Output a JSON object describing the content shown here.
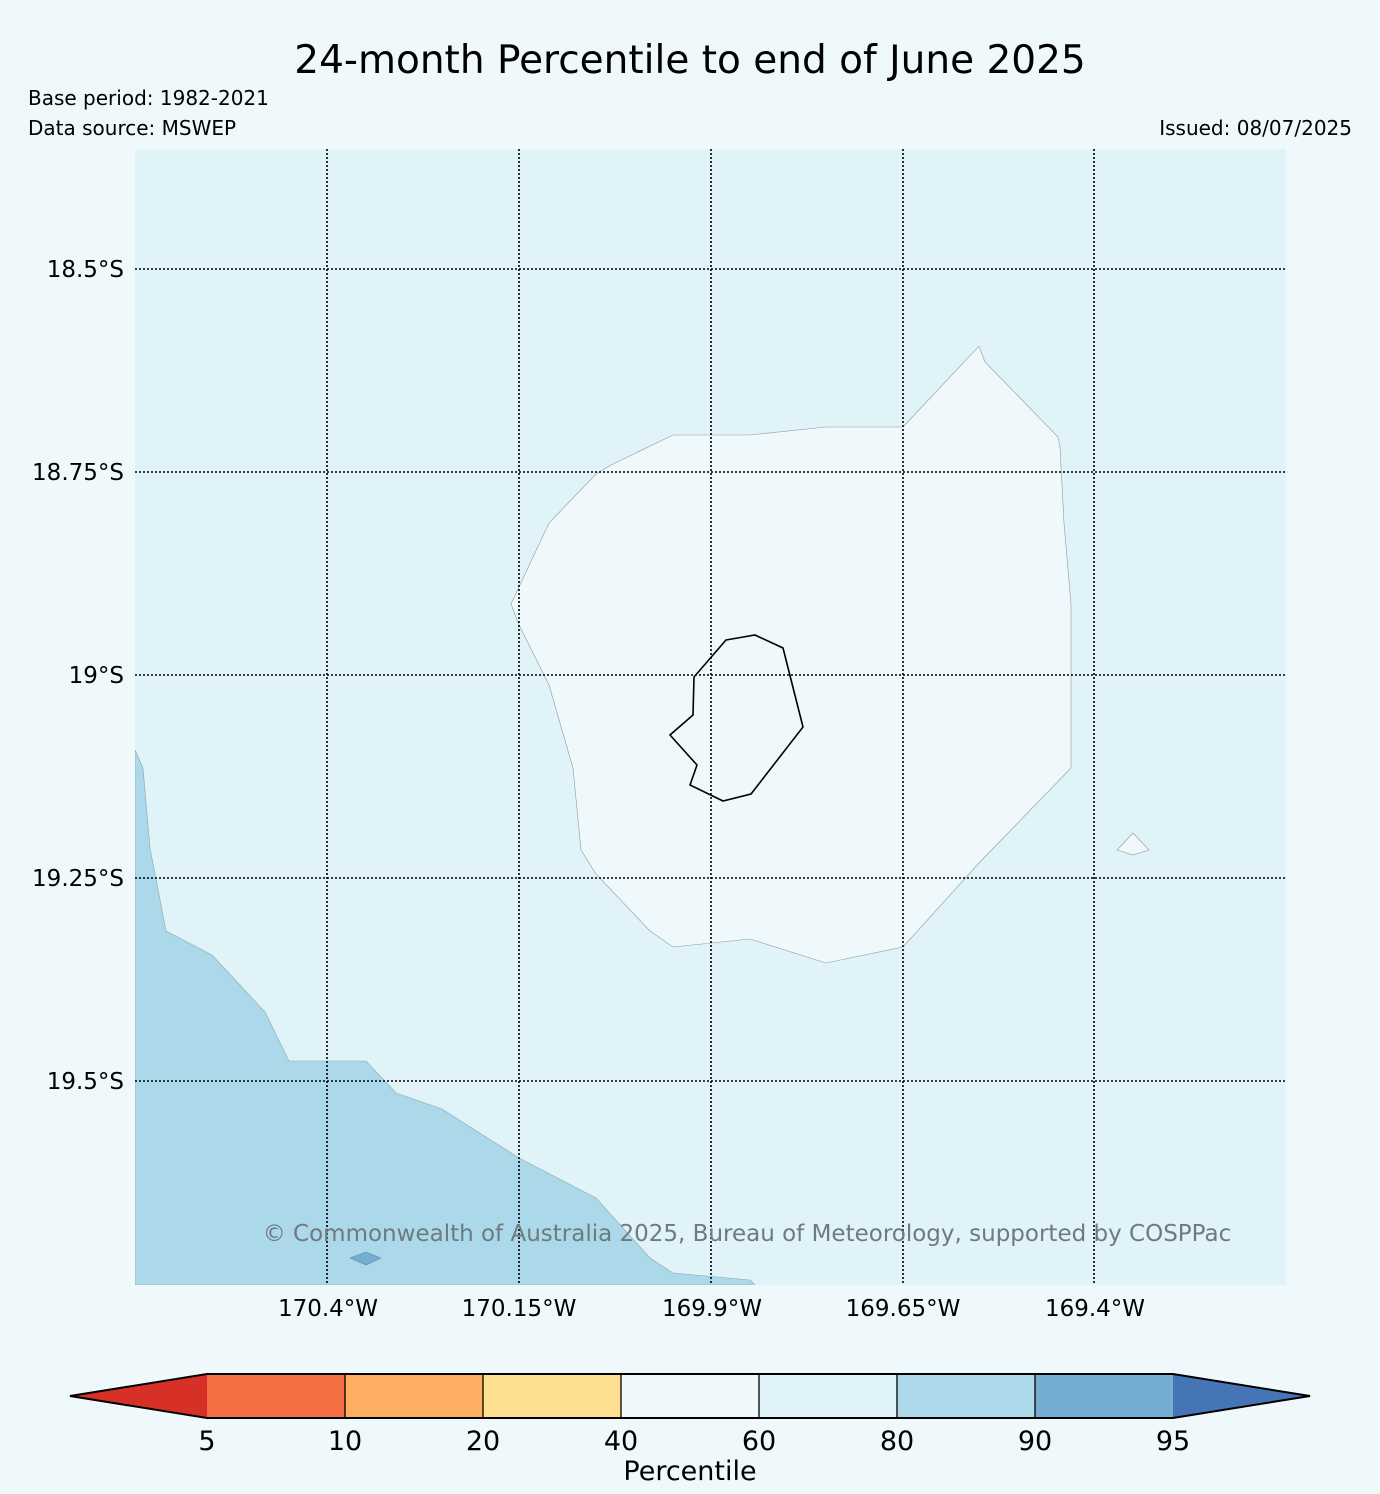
{
  "title": "24-month Percentile to end of June 2025",
  "base_period": "Base period: 1982-2021",
  "data_source": "Data source: MSWEP",
  "issued": "Issued: 08/07/2025",
  "copyright": "© Commonwealth of Australia 2025, Bureau of Meteorology, supported by COSPPac",
  "map": {
    "lat_labels": [
      "18.5°S",
      "18.75°S",
      "19°S",
      "19.25°S",
      "19.5°S"
    ],
    "lon_labels": [
      "170.4°W",
      "170.15°W",
      "169.9°W",
      "169.65°W",
      "169.4°W"
    ],
    "background_class": "60-80",
    "colors": {
      "c60_80": "#e0f3f8",
      "c40_60": "#eff8fb",
      "c80_90": "#abd9e9",
      "c90_95": "#74add1"
    }
  },
  "colorbar": {
    "label": "Percentile",
    "ticks": [
      "5",
      "10",
      "20",
      "40",
      "60",
      "80",
      "90",
      "95"
    ],
    "colors": [
      "#d73027",
      "#f46d43",
      "#fdae61",
      "#fee090",
      "#eff8fb",
      "#e0f3f8",
      "#abd9e9",
      "#74add1",
      "#4575b4"
    ]
  }
}
